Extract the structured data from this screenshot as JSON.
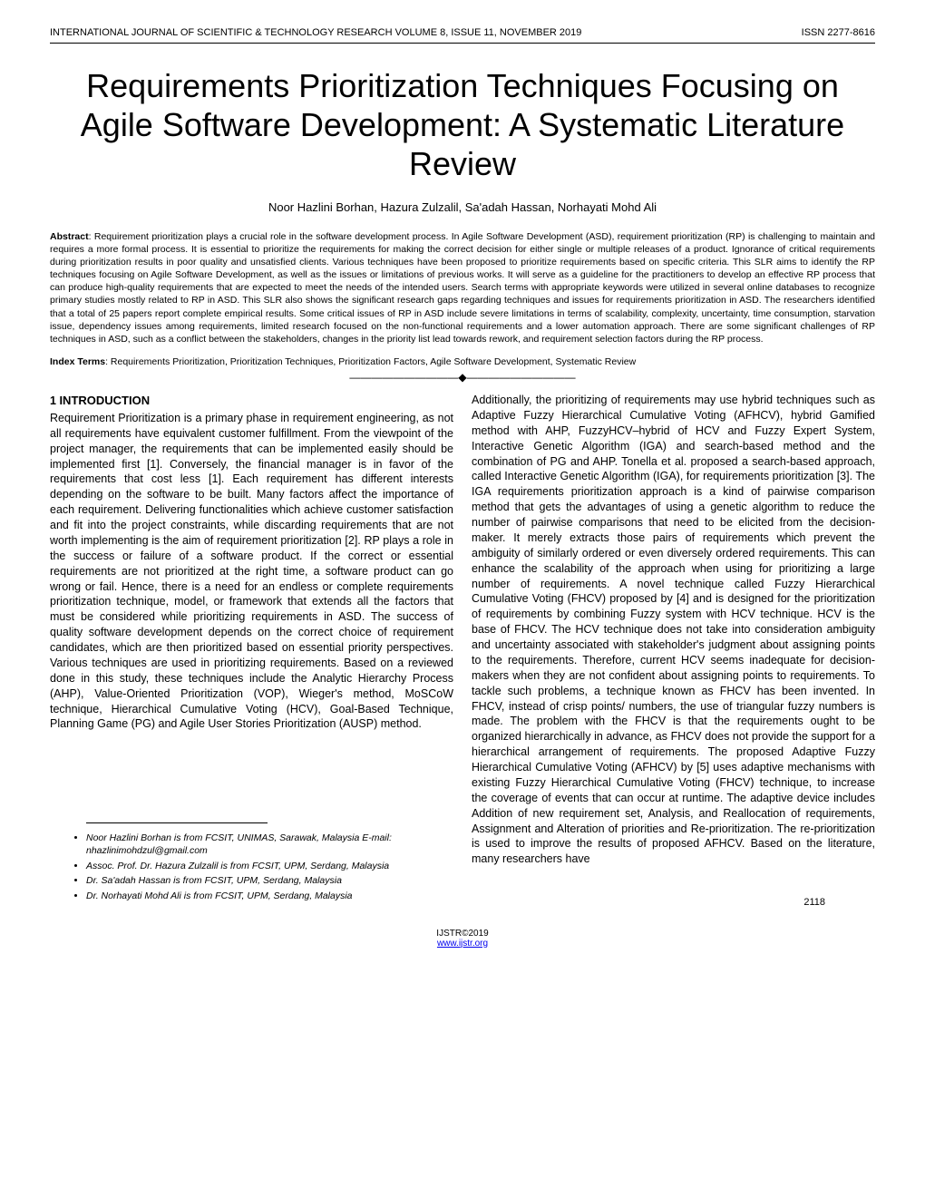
{
  "header": {
    "journal": "INTERNATIONAL JOURNAL OF SCIENTIFIC & TECHNOLOGY RESEARCH VOLUME 8, ISSUE 11, NOVEMBER 2019",
    "issn": "ISSN 2277-8616"
  },
  "title": "Requirements Prioritization Techniques Focusing on Agile Software Development: A Systematic Literature Review",
  "authors": "Noor Hazlini Borhan, Hazura Zulzalil, Sa'adah Hassan, Norhayati Mohd Ali",
  "abstract": {
    "label": "Abstract",
    "text": ": Requirement prioritization plays a crucial role in the software development process. In Agile Software Development (ASD), requirement prioritization (RP) is challenging to maintain and requires a more formal process. It is essential to prioritize the requirements for making the correct decision for either single or multiple releases of a product. Ignorance of critical requirements during prioritization results in poor quality and unsatisfied clients. Various techniques have been proposed to prioritize requirements based on specific criteria. This SLR aims to identify the RP techniques focusing on Agile Software Development, as well as the issues or limitations of previous works. It will serve as a guideline for the practitioners to develop an effective RP process that can produce high-quality requirements that are expected to meet the needs of the intended users. Search terms with appropriate keywords were utilized in several online databases to recognize primary studies mostly related to RP in ASD. This SLR also shows the significant research gaps regarding techniques and issues for requirements prioritization in ASD. The researchers identified that a total of 25 papers report complete empirical results. Some critical issues of RP in ASD include severe limitations in terms of scalability, complexity, uncertainty, time consumption, starvation issue, dependency issues among requirements, limited research focused on the non-functional requirements and a lower automation approach. There are some significant challenges of RP techniques in ASD, such as a conflict between the stakeholders, changes in the priority list lead towards rework, and requirement selection factors during the RP process."
  },
  "index_terms": {
    "label": "Index Terms",
    "text": ": Requirements Prioritization, Prioritization Techniques, Prioritization Factors, Agile Software Development, Systematic Review"
  },
  "ornament": "——————————◆——————————",
  "section1": {
    "num": "1",
    "heading": "INTRODUCTION",
    "body_left": "Requirement Prioritization is a primary phase in requirement engineering, as not all requirements have equivalent customer fulfillment. From the viewpoint of the project manager, the requirements that can be implemented easily should be implemented first [1]. Conversely, the financial manager is in favor of the requirements that cost less [1]. Each requirement has different interests depending on the software to be built. Many factors affect the importance of each requirement. Delivering functionalities which achieve customer satisfaction and fit into the project constraints, while discarding requirements that are not worth implementing is the aim of requirement prioritization [2]. RP plays a role in the success or failure of a software product. If the correct or essential requirements are not prioritized at the right time, a software product can go wrong or fail. Hence, there is a need for an endless or complete requirements prioritization technique, model, or framework that extends all the factors that must be considered while prioritizing requirements in ASD. The success of quality software development depends on the correct choice of requirement candidates, which are then prioritized based on essential priority perspectives. Various techniques are used in prioritizing requirements. Based on a reviewed done in this study, these techniques include the Analytic Hierarchy Process (AHP), Value-Oriented Prioritization (VOP), Wieger's method, MoSCoW technique, Hierarchical Cumulative Voting (HCV), Goal-Based Technique, Planning Game (PG) and Agile User Stories Prioritization (AUSP) method.",
    "body_right": "Additionally, the prioritizing of requirements may use hybrid techniques such as Adaptive Fuzzy Hierarchical Cumulative Voting (AFHCV), hybrid Gamified method with AHP, FuzzyHCV–hybrid of HCV and Fuzzy Expert System, Interactive Genetic Algorithm (IGA) and search-based method and the combination of PG and AHP. Tonella et al. proposed a search-based approach, called Interactive Genetic Algorithm (IGA), for requirements prioritization [3]. The IGA requirements prioritization approach is a kind of pairwise comparison method that gets the advantages of using a genetic algorithm to reduce the number of pairwise comparisons that need to be elicited from the decision-maker. It merely extracts those pairs of requirements which prevent the ambiguity of similarly ordered or even diversely ordered requirements. This can enhance the scalability of the approach when using for prioritizing a large number of requirements. A novel technique called Fuzzy Hierarchical Cumulative Voting (FHCV) proposed by [4] and is designed for the prioritization of requirements by combining Fuzzy system with HCV technique. HCV is the base of FHCV. The HCV technique does not take into consideration ambiguity and uncertainty associated with stakeholder's judgment about assigning points to the requirements. Therefore, current HCV seems inadequate for decision-makers when they are not confident about assigning points to requirements. To tackle such problems, a technique known as FHCV has been invented. In FHCV, instead of crisp points/ numbers, the use of triangular fuzzy numbers is made. The problem with the FHCV is that the requirements ought to be organized hierarchically in advance, as FHCV does not provide the support for a hierarchical arrangement of requirements. The proposed Adaptive Fuzzy Hierarchical Cumulative Voting (AFHCV) by [5] uses adaptive mechanisms with existing Fuzzy Hierarchical Cumulative Voting (FHCV) technique, to increase the coverage of events that can occur at runtime. The adaptive device includes Addition of new requirement set, Analysis, and Reallocation of requirements, Assignment and Alteration of priorities and Re-prioritization. The re-prioritization is used to improve the results of proposed AFHCV. Based on the literature, many researchers have"
  },
  "affiliations": {
    "items": [
      "Noor Hazlini Borhan is from FCSIT, UNIMAS, Sarawak, Malaysia E-mail: nhazlinimohdzul@gmail.com",
      "Assoc. Prof. Dr. Hazura Zulzalil is from FCSIT, UPM, Serdang, Malaysia",
      "Dr. Sa'adah Hassan is from FCSIT, UPM, Serdang, Malaysia",
      "Dr. Norhayati Mohd Ali is from FCSIT, UPM, Serdang, Malaysia"
    ]
  },
  "footer": {
    "copyright": "IJSTR©2019",
    "url": "www.ijstr.org",
    "page_num": "2118"
  }
}
